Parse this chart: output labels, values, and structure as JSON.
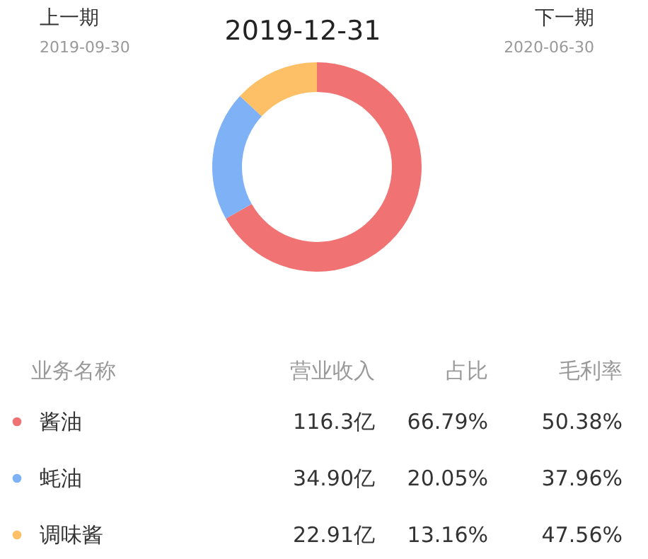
{
  "chart_data": {
    "type": "donut",
    "title": "2019-12-31",
    "categories": [
      "酱油",
      "蚝油",
      "调味酱"
    ],
    "values": [
      66.79,
      20.05,
      13.16
    ],
    "value_labels": [
      "66.79%",
      "20.05%",
      "13.16%"
    ],
    "colors": [
      "#f07272",
      "#7eb1f5",
      "#fdc066"
    ],
    "legend": "bottom",
    "annotations": [
      "上一期",
      "2019-09-30",
      "下一期",
      "2020-06-30",
      "业务名称",
      "营业收入",
      "占比",
      "毛利率",
      "116.3亿",
      "34.90亿",
      "22.91亿",
      "50.38%",
      "37.96%",
      "47.56%"
    ]
  }
}
